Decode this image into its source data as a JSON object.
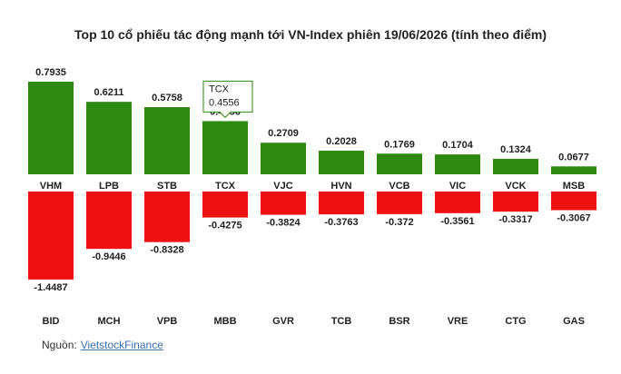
{
  "chart_data": {
    "type": "diverging_bar",
    "title": "Top 10 cổ phiếu tác động mạnh tới VN-Index phiên 19/06/2026 (tính theo điểm)",
    "top": {
      "categories": [
        "VHM",
        "LPB",
        "STB",
        "TCX",
        "VJC",
        "HVN",
        "VCB",
        "VIC",
        "VCK",
        "MSB"
      ],
      "values": [
        0.7935,
        0.6211,
        0.5758,
        0.4556,
        0.2709,
        0.2028,
        0.1769,
        0.1704,
        0.1324,
        0.0677
      ],
      "color": "#2f8a12"
    },
    "bottom": {
      "categories": [
        "BID",
        "MCH",
        "VPB",
        "MBB",
        "GVR",
        "TCB",
        "BSR",
        "VRE",
        "CTG",
        "GAS"
      ],
      "values": [
        -1.4487,
        -0.9446,
        -0.8328,
        -0.4275,
        -0.3824,
        -0.3763,
        -0.372,
        -0.3561,
        -0.3317,
        -0.3067
      ],
      "color": "#ee1111"
    },
    "tooltip": {
      "category": "TCX",
      "value": 0.4556
    },
    "source": {
      "label": "Nguồn:",
      "link": "VietstockFinance"
    }
  }
}
